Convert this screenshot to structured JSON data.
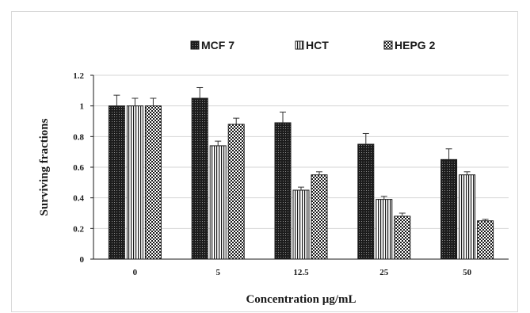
{
  "chart_data": {
    "type": "bar",
    "title": "",
    "xlabel": "Concentration µg/mL",
    "ylabel": "Surviving fractions",
    "categories": [
      "0",
      "5",
      "12.5",
      "25",
      "50"
    ],
    "ylim": [
      0,
      1.2
    ],
    "yticks": [
      "0",
      "0.2",
      "0.4",
      "0.6",
      "0.8",
      "1",
      "1.2"
    ],
    "grid": true,
    "legend_position": "top",
    "series": [
      {
        "name": "MCF 7",
        "pattern": "dots-dark",
        "values": [
          1.0,
          1.05,
          0.89,
          0.75,
          0.65
        ],
        "errors": [
          0.07,
          0.07,
          0.07,
          0.07,
          0.07
        ]
      },
      {
        "name": "HCT",
        "pattern": "vertical-stripes",
        "values": [
          1.0,
          0.74,
          0.45,
          0.39,
          0.55
        ],
        "errors": [
          0.05,
          0.03,
          0.02,
          0.02,
          0.02
        ]
      },
      {
        "name": "HEPG 2",
        "pattern": "checkerboard",
        "values": [
          1.0,
          0.88,
          0.55,
          0.28,
          0.25
        ],
        "errors": [
          0.05,
          0.04,
          0.02,
          0.02,
          0.01
        ]
      }
    ]
  }
}
